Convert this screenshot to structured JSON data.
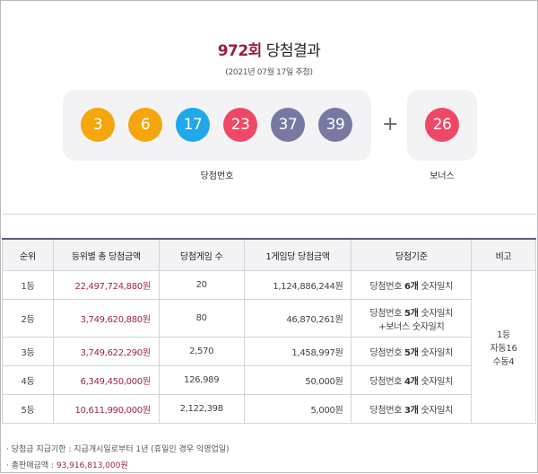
{
  "header": {
    "round": "972회",
    "title": "당첨결과",
    "draw_date": "(2021년 07월 17일 추첨)"
  },
  "numbers": {
    "balls": [
      "3",
      "6",
      "17",
      "23",
      "37",
      "39"
    ],
    "ball_colors": [
      "#f4a60c",
      "#f4a60c",
      "#1fa8ea",
      "#ef4866",
      "#7879a1",
      "#7879a1"
    ],
    "plus": "+",
    "bonus": "26",
    "bonus_color": "#ef4866",
    "winning_caption": "당첨번호",
    "bonus_caption": "보너스"
  },
  "table": {
    "headers": [
      "순위",
      "등위별 총 당첨금액",
      "당첨게임 수",
      "1게임당 당첨금액",
      "당첨기준",
      "비고"
    ],
    "rows": [
      {
        "rank": "1등",
        "total": "22,497,724,880원",
        "games": "20",
        "per_game": "1,124,886,244원",
        "crit_pre": "당첨번호 ",
        "crit_bold": "6개",
        "crit_post": " 숫자일치",
        "crit_line2": ""
      },
      {
        "rank": "2등",
        "total": "3,749,620,880원",
        "games": "80",
        "per_game": "46,870,261원",
        "crit_pre": "당첨번호 ",
        "crit_bold": "5개",
        "crit_post": " 숫자일치",
        "crit_line2": "+보너스 숫자일치"
      },
      {
        "rank": "3등",
        "total": "3,749,622,290원",
        "games": "2,570",
        "per_game": "1,458,997원",
        "crit_pre": "당첨번호 ",
        "crit_bold": "5개",
        "crit_post": " 숫자일치",
        "crit_line2": ""
      },
      {
        "rank": "4등",
        "total": "6,349,450,000원",
        "games": "126,989",
        "per_game": "50,000원",
        "crit_pre": "당첨번호 ",
        "crit_bold": "4개",
        "crit_post": " 숫자일치",
        "crit_line2": ""
      },
      {
        "rank": "5등",
        "total": "10,611,990,000원",
        "games": "2,122,398",
        "per_game": "5,000원",
        "crit_pre": "당첨번호 ",
        "crit_bold": "3개",
        "crit_post": " 숫자일치",
        "crit_line2": ""
      }
    ],
    "remark_lines": [
      "1등",
      "자동16",
      "수동4"
    ]
  },
  "notes": {
    "deadline": "당첨금 지급기한 : 지급개시일로부터 1년 (휴일인 경우 익영업일)",
    "total_sales_label": "총판매금액 : ",
    "total_sales_value": "93,916,813,000원"
  }
}
